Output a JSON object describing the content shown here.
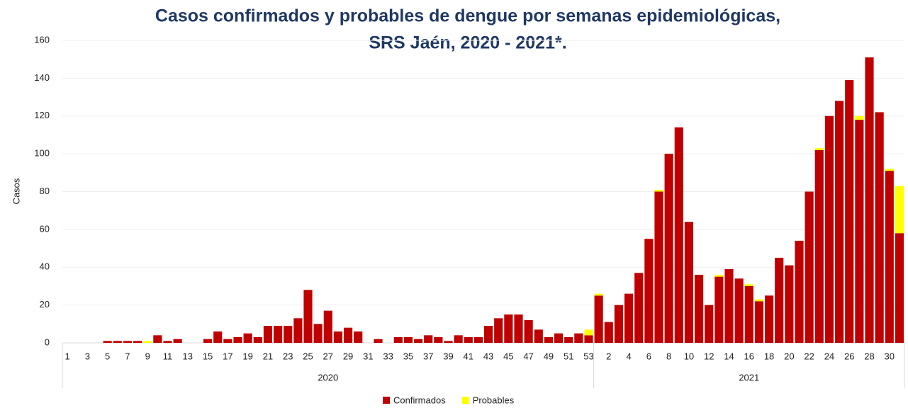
{
  "chart_data": {
    "type": "stacked-bar",
    "title": [
      "Casos confirmados y probables de dengue por semanas epidemiológicas,",
      "SRS Jaén, 2020 - 2021*."
    ],
    "ylabel": "Casos",
    "ylim": [
      0,
      160
    ],
    "yticks": [
      0,
      20,
      40,
      60,
      80,
      100,
      120,
      140,
      160
    ],
    "grid": true,
    "legend": "bottom",
    "groups": [
      "2020",
      "2021"
    ],
    "categories": [
      [
        "1",
        null,
        "3",
        null,
        "5",
        null,
        "7",
        null,
        "9",
        null,
        "11",
        null,
        "13",
        null,
        "15",
        null,
        "17",
        null,
        "19",
        null,
        "21",
        null,
        "23",
        null,
        "25",
        null,
        "27",
        null,
        "29",
        null,
        "31",
        null,
        "33",
        null,
        "35",
        null,
        "37",
        null,
        "39",
        null,
        "41",
        null,
        "43",
        null,
        "45",
        null,
        "47",
        null,
        "49",
        null,
        "51",
        null,
        "53"
      ],
      [
        null,
        "2",
        null,
        "4",
        null,
        "6",
        null,
        "8",
        null,
        "10",
        null,
        "12",
        null,
        "14",
        null,
        "16",
        null,
        "18",
        null,
        "20",
        null,
        "22",
        null,
        "24",
        null,
        "26",
        null,
        "28",
        null,
        "30",
        null
      ]
    ],
    "series": [
      {
        "name": "Confirmados",
        "color": "#c00000",
        "values": [
          [
            0,
            0,
            0,
            0,
            1,
            1,
            1,
            1,
            0,
            4,
            1,
            2,
            0,
            0,
            2,
            6,
            2,
            3,
            5,
            3,
            9,
            9,
            9,
            13,
            28,
            10,
            17,
            6,
            8,
            6,
            0,
            2,
            0,
            3,
            3,
            2,
            4,
            3,
            1,
            4,
            3,
            3,
            9,
            13,
            15,
            15,
            12,
            7,
            3,
            5,
            3,
            5,
            4
          ],
          [
            25,
            11,
            20,
            26,
            37,
            55,
            80,
            100,
            114,
            64,
            36,
            20,
            35,
            39,
            34,
            30,
            22,
            25,
            45,
            41,
            54,
            80,
            102,
            120,
            128,
            139,
            118,
            151,
            122,
            91,
            58
          ]
        ]
      },
      {
        "name": "Probables",
        "color": "#ffff00",
        "values": [
          [
            0,
            0,
            0,
            0,
            0,
            0,
            0,
            0,
            1,
            0,
            0,
            0,
            0,
            0,
            0,
            0,
            0,
            0,
            0,
            0,
            0,
            0,
            0,
            0,
            0,
            0,
            0,
            0,
            0,
            0,
            0,
            0,
            0,
            0,
            0,
            0,
            0,
            0,
            0,
            0,
            0,
            0,
            0,
            0,
            0,
            0,
            0,
            0,
            0,
            0,
            0,
            0,
            3
          ],
          [
            1,
            0,
            0,
            0,
            0,
            0,
            1,
            0,
            0,
            0,
            0,
            0,
            1,
            0,
            0,
            1,
            1,
            0,
            0,
            0,
            0,
            0,
            1,
            0,
            0,
            0,
            2,
            0,
            0,
            1,
            25
          ]
        ]
      }
    ]
  }
}
